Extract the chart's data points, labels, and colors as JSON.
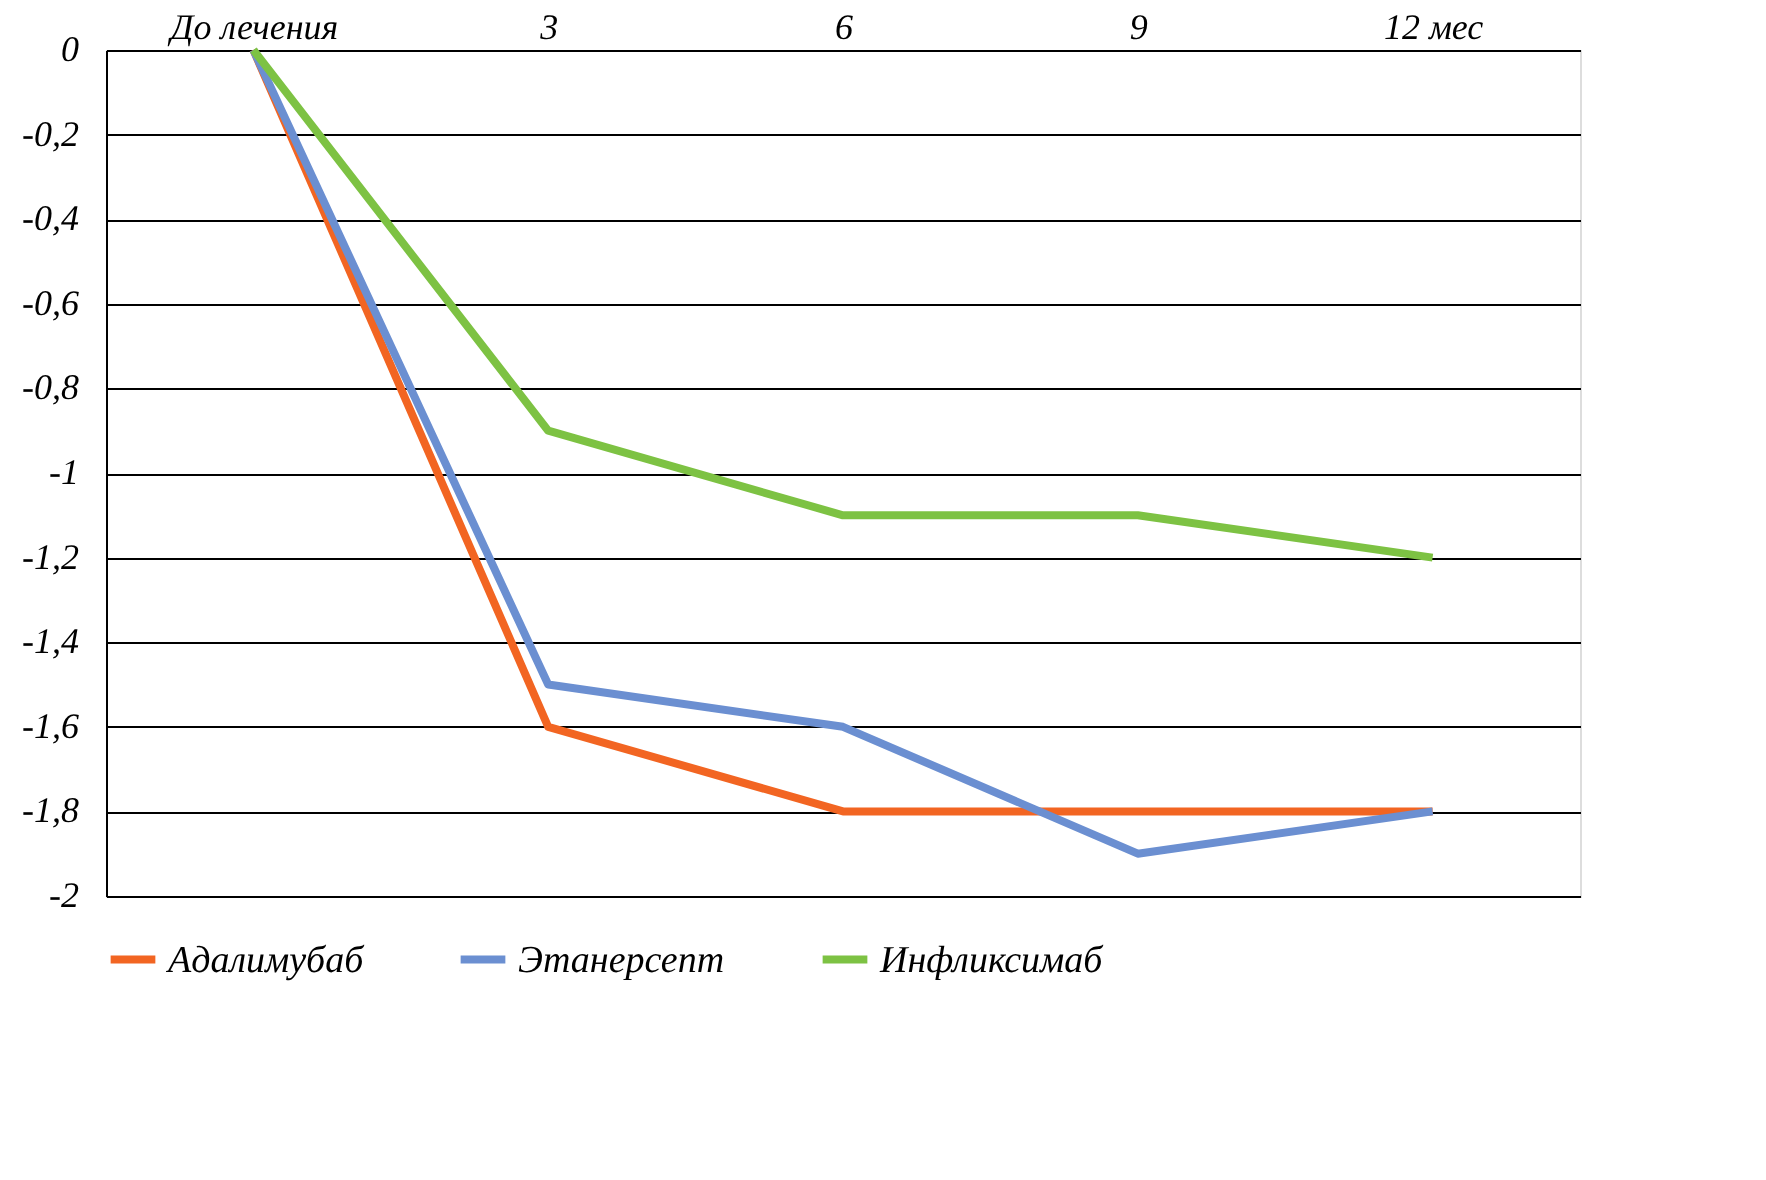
{
  "chart_data": {
    "type": "line",
    "categories": [
      "До лечения",
      "3",
      "6",
      "9",
      "12 мес"
    ],
    "series": [
      {
        "name": "Адалимубаб",
        "color": "#f26522",
        "values": [
          0,
          -1.6,
          -1.8,
          -1.8,
          -1.8
        ]
      },
      {
        "name": "Этанерсепт",
        "color": "#6b8fd1",
        "values": [
          0,
          -1.5,
          -1.6,
          -1.9,
          -1.8
        ]
      },
      {
        "name": "Инфликсимаб",
        "color": "#7dc243",
        "values": [
          0,
          -0.9,
          -1.1,
          -1.1,
          -1.2
        ]
      }
    ],
    "ylim": [
      -2,
      0
    ],
    "yticks": [
      0,
      {
        "value": -0.2,
        "label": "-0,2"
      },
      {
        "value": -0.4,
        "label": "-0,4"
      },
      {
        "value": -0.6,
        "label": "-0,6"
      },
      {
        "value": -0.8,
        "label": "-0,8"
      },
      -1,
      {
        "value": -1.2,
        "label": "-1,2"
      },
      {
        "value": -1.4,
        "label": "-1,4"
      },
      {
        "value": -1.6,
        "label": "-1,6"
      },
      {
        "value": -1.8,
        "label": "-1,8"
      },
      -2
    ],
    "grid": "y",
    "legend": "bottom",
    "marker": "none",
    "line_style": "solid"
  }
}
